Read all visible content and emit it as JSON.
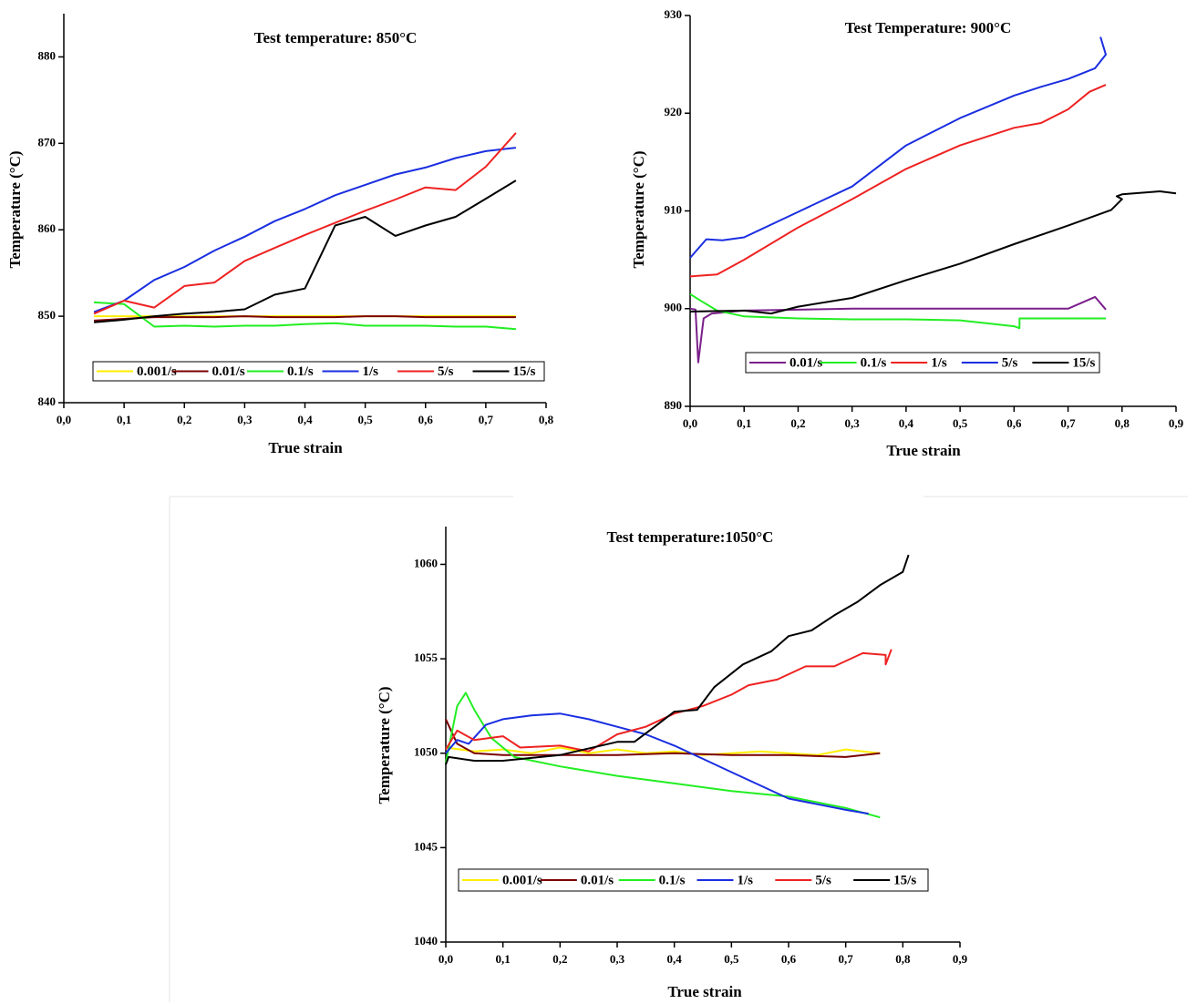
{
  "chart_data": [
    {
      "type": "line",
      "title": "Test temperature: 850°C",
      "xlabel": "True strain",
      "ylabel": "Temperature (°C)",
      "xlim": [
        0,
        0.8
      ],
      "ylim": [
        840,
        885
      ],
      "xticks": [
        {
          "value": 0,
          "label": "0,0"
        },
        {
          "value": 0.1,
          "label": "0,1"
        },
        {
          "value": 0.2,
          "label": "0,2"
        },
        {
          "value": 0.3,
          "label": "0,3"
        },
        {
          "value": 0.4,
          "label": "0,4"
        },
        {
          "value": 0.5,
          "label": "0,5"
        },
        {
          "value": 0.6,
          "label": "0,6"
        },
        {
          "value": 0.7,
          "label": "0,7"
        },
        {
          "value": 0.8,
          "label": "0,8"
        }
      ],
      "yticks": [
        840,
        850,
        860,
        870,
        880
      ],
      "series": [
        {
          "name": "0.001/s",
          "color": "#ffee00",
          "x": [
            0.05,
            0.1,
            0.15,
            0.2,
            0.25,
            0.3,
            0.35,
            0.4,
            0.45,
            0.5,
            0.55,
            0.6,
            0.65,
            0.7,
            0.75
          ],
          "values": [
            850,
            850,
            850,
            850,
            850,
            850,
            850,
            850,
            850,
            850,
            850,
            850,
            850,
            850,
            850
          ]
        },
        {
          "name": "0.01/s",
          "color": "#7b0000",
          "x": [
            0.05,
            0.1,
            0.15,
            0.2,
            0.25,
            0.3,
            0.35,
            0.4,
            0.45,
            0.5,
            0.55,
            0.6,
            0.65,
            0.7,
            0.75
          ],
          "values": [
            849.5,
            849.7,
            849.9,
            849.9,
            849.9,
            850,
            849.9,
            849.9,
            849.9,
            850,
            850,
            849.9,
            849.9,
            849.9,
            849.9
          ]
        },
        {
          "name": "0.1/s",
          "color": "#22ee22",
          "x": [
            0.05,
            0.1,
            0.15,
            0.2,
            0.25,
            0.3,
            0.35,
            0.4,
            0.45,
            0.5,
            0.55,
            0.6,
            0.65,
            0.7,
            0.75
          ],
          "values": [
            851.6,
            851.4,
            848.8,
            848.9,
            848.8,
            848.9,
            848.9,
            849.1,
            849.2,
            848.9,
            848.9,
            848.9,
            848.8,
            848.8,
            848.5
          ]
        },
        {
          "name": "1/s",
          "color": "#1a2ee0",
          "x": [
            0.05,
            0.1,
            0.15,
            0.2,
            0.25,
            0.3,
            0.35,
            0.4,
            0.45,
            0.5,
            0.55,
            0.6,
            0.65,
            0.7,
            0.75
          ],
          "values": [
            850.5,
            851.8,
            854.2,
            855.7,
            857.6,
            859.2,
            861,
            862.4,
            864,
            865.2,
            866.4,
            867.2,
            868.3,
            869.1,
            869.5
          ]
        },
        {
          "name": "5/s",
          "color": "#ee2222",
          "x": [
            0.05,
            0.1,
            0.15,
            0.2,
            0.25,
            0.3,
            0.35,
            0.4,
            0.45,
            0.5,
            0.55,
            0.6,
            0.65,
            0.7,
            0.75
          ],
          "values": [
            850.3,
            851.8,
            851,
            853.5,
            853.9,
            856.4,
            857.9,
            859.4,
            860.8,
            862.2,
            863.5,
            864.9,
            864.6,
            867.3,
            871.2
          ]
        },
        {
          "name": "15/s",
          "color": "#000000",
          "x": [
            0.05,
            0.1,
            0.15,
            0.2,
            0.25,
            0.3,
            0.35,
            0.4,
            0.45,
            0.5,
            0.55,
            0.6,
            0.65,
            0.7,
            0.75
          ],
          "values": [
            849.3,
            849.6,
            850,
            850.3,
            850.5,
            850.8,
            852.5,
            853.2,
            860.5,
            861.5,
            859.3,
            860.5,
            861.5,
            863.6,
            865.7
          ]
        }
      ]
    },
    {
      "type": "line",
      "title": "Test Temperature: 900°C",
      "xlabel": "True strain",
      "ylabel": "Temperature (°C)",
      "xlim": [
        0,
        0.9
      ],
      "ylim": [
        890,
        930
      ],
      "xticks": [
        {
          "value": 0,
          "label": "0,0"
        },
        {
          "value": 0.1,
          "label": "0,1"
        },
        {
          "value": 0.2,
          "label": "0,2"
        },
        {
          "value": 0.3,
          "label": "0,3"
        },
        {
          "value": 0.4,
          "label": "0,4"
        },
        {
          "value": 0.5,
          "label": "0,5"
        },
        {
          "value": 0.6,
          "label": "0,6"
        },
        {
          "value": 0.7,
          "label": "0,7"
        },
        {
          "value": 0.8,
          "label": "0,8"
        },
        {
          "value": 0.9,
          "label": "0,9"
        }
      ],
      "yticks": [
        890,
        900,
        910,
        920,
        930
      ],
      "series": [
        {
          "name": "0.01/s",
          "color": "#7a1f8a",
          "x": [
            0,
            0.01,
            0.015,
            0.025,
            0.04,
            0.1,
            0.3,
            0.5,
            0.7,
            0.75,
            0.77
          ],
          "values": [
            900,
            899.9,
            894.5,
            899,
            899.5,
            899.8,
            900,
            900,
            900,
            901.2,
            899.9
          ]
        },
        {
          "name": "0.1/s",
          "color": "#22ee22",
          "x": [
            0,
            0.02,
            0.05,
            0.1,
            0.2,
            0.3,
            0.4,
            0.5,
            0.6,
            0.61,
            0.61,
            0.77
          ],
          "values": [
            901.5,
            900.8,
            899.8,
            899.2,
            899,
            898.9,
            898.9,
            898.8,
            898.2,
            898,
            899,
            899
          ]
        },
        {
          "name": "1/s",
          "color": "#ee2222",
          "x": [
            0,
            0.05,
            0.1,
            0.2,
            0.3,
            0.4,
            0.5,
            0.6,
            0.65,
            0.7,
            0.74,
            0.77
          ],
          "values": [
            903.3,
            903.5,
            905,
            908.3,
            911.2,
            914.3,
            916.7,
            918.5,
            919,
            920.4,
            922.2,
            922.9
          ]
        },
        {
          "name": "5/s",
          "color": "#1a2ee0",
          "x": [
            0,
            0.03,
            0.06,
            0.1,
            0.2,
            0.3,
            0.4,
            0.5,
            0.6,
            0.65,
            0.7,
            0.75,
            0.77,
            0.76
          ],
          "values": [
            905.2,
            907.1,
            907,
            907.3,
            909.9,
            912.5,
            916.7,
            919.5,
            921.8,
            922.7,
            923.5,
            924.6,
            926,
            927.8
          ]
        },
        {
          "name": "15/s",
          "color": "#000000",
          "x": [
            0,
            0.1,
            0.15,
            0.2,
            0.3,
            0.4,
            0.5,
            0.6,
            0.7,
            0.78,
            0.8,
            0.79,
            0.8,
            0.87,
            0.9
          ],
          "values": [
            899.7,
            899.8,
            899.5,
            900.2,
            901.1,
            902.9,
            904.6,
            906.6,
            908.5,
            910.1,
            911.2,
            911.5,
            911.7,
            912,
            911.8
          ]
        }
      ]
    },
    {
      "type": "line",
      "title": "Test temperature:1050°C",
      "xlabel": "True strain",
      "ylabel": "Temperature (°C)",
      "xlim": [
        0,
        0.9
      ],
      "ylim": [
        1040,
        1062
      ],
      "xticks": [
        {
          "value": 0,
          "label": "0,0"
        },
        {
          "value": 0.1,
          "label": "0,1"
        },
        {
          "value": 0.2,
          "label": "0,2"
        },
        {
          "value": 0.3,
          "label": "0,3"
        },
        {
          "value": 0.4,
          "label": "0,4"
        },
        {
          "value": 0.5,
          "label": "0,5"
        },
        {
          "value": 0.6,
          "label": "0,6"
        },
        {
          "value": 0.7,
          "label": "0,7"
        },
        {
          "value": 0.8,
          "label": "0,8"
        },
        {
          "value": 0.9,
          "label": "0,9"
        }
      ],
      "yticks": [
        1040,
        1045,
        1050,
        1055,
        1060
      ],
      "series": [
        {
          "name": "0.001/s",
          "color": "#ffee00",
          "x": [
            0,
            0.05,
            0.1,
            0.15,
            0.2,
            0.25,
            0.3,
            0.35,
            0.4,
            0.45,
            0.5,
            0.55,
            0.6,
            0.65,
            0.7,
            0.73,
            0.76
          ],
          "values": [
            1050.3,
            1050.1,
            1050.2,
            1050,
            1050.3,
            1050,
            1050.2,
            1050,
            1050.1,
            1049.9,
            1050,
            1050.1,
            1050,
            1049.9,
            1050.2,
            1050.1,
            1050
          ]
        },
        {
          "name": "0.01/s",
          "color": "#7b0000",
          "x": [
            0,
            0.02,
            0.05,
            0.1,
            0.2,
            0.3,
            0.4,
            0.5,
            0.6,
            0.7,
            0.76
          ],
          "values": [
            1051.8,
            1050.5,
            1050,
            1049.9,
            1049.9,
            1049.9,
            1050,
            1049.9,
            1049.9,
            1049.8,
            1050
          ]
        },
        {
          "name": "0.1/s",
          "color": "#22ee22",
          "x": [
            0,
            0.02,
            0.035,
            0.05,
            0.08,
            0.12,
            0.2,
            0.3,
            0.4,
            0.5,
            0.6,
            0.7,
            0.76
          ],
          "values": [
            1049.5,
            1052.5,
            1053.2,
            1052.3,
            1050.8,
            1049.8,
            1049.3,
            1048.8,
            1048.4,
            1048,
            1047.7,
            1047.1,
            1046.6
          ]
        },
        {
          "name": "1/s",
          "color": "#1a2ee0",
          "x": [
            0,
            0.02,
            0.04,
            0.07,
            0.1,
            0.15,
            0.2,
            0.25,
            0.3,
            0.35,
            0.4,
            0.45,
            0.5,
            0.55,
            0.6,
            0.65,
            0.7,
            0.74
          ],
          "values": [
            1050,
            1050.7,
            1050.5,
            1051.5,
            1051.8,
            1052,
            1052.1,
            1051.8,
            1051.4,
            1051,
            1050.4,
            1049.7,
            1049,
            1048.3,
            1047.6,
            1047.3,
            1047,
            1046.8
          ]
        },
        {
          "name": "5/s",
          "color": "#ee2222",
          "x": [
            0,
            0.02,
            0.05,
            0.1,
            0.13,
            0.2,
            0.25,
            0.3,
            0.35,
            0.4,
            0.45,
            0.5,
            0.53,
            0.58,
            0.63,
            0.68,
            0.73,
            0.77,
            0.77,
            0.78
          ],
          "values": [
            1050.2,
            1051.2,
            1050.7,
            1050.9,
            1050.3,
            1050.4,
            1050.1,
            1051,
            1051.4,
            1052.1,
            1052.5,
            1053.1,
            1053.6,
            1053.9,
            1054.6,
            1054.6,
            1055.3,
            1055.2,
            1054.7,
            1055.5
          ]
        },
        {
          "name": "15/s",
          "color": "#000000",
          "x": [
            0,
            0.005,
            0.05,
            0.1,
            0.2,
            0.3,
            0.33,
            0.37,
            0.4,
            0.44,
            0.47,
            0.52,
            0.57,
            0.6,
            0.64,
            0.68,
            0.72,
            0.76,
            0.8,
            0.81
          ],
          "values": [
            1049.4,
            1049.8,
            1049.6,
            1049.6,
            1049.9,
            1050.6,
            1050.6,
            1051.5,
            1052.2,
            1052.3,
            1053.5,
            1054.7,
            1055.4,
            1056.2,
            1056.5,
            1057.3,
            1058,
            1058.9,
            1059.6,
            1060.5
          ]
        }
      ]
    }
  ]
}
